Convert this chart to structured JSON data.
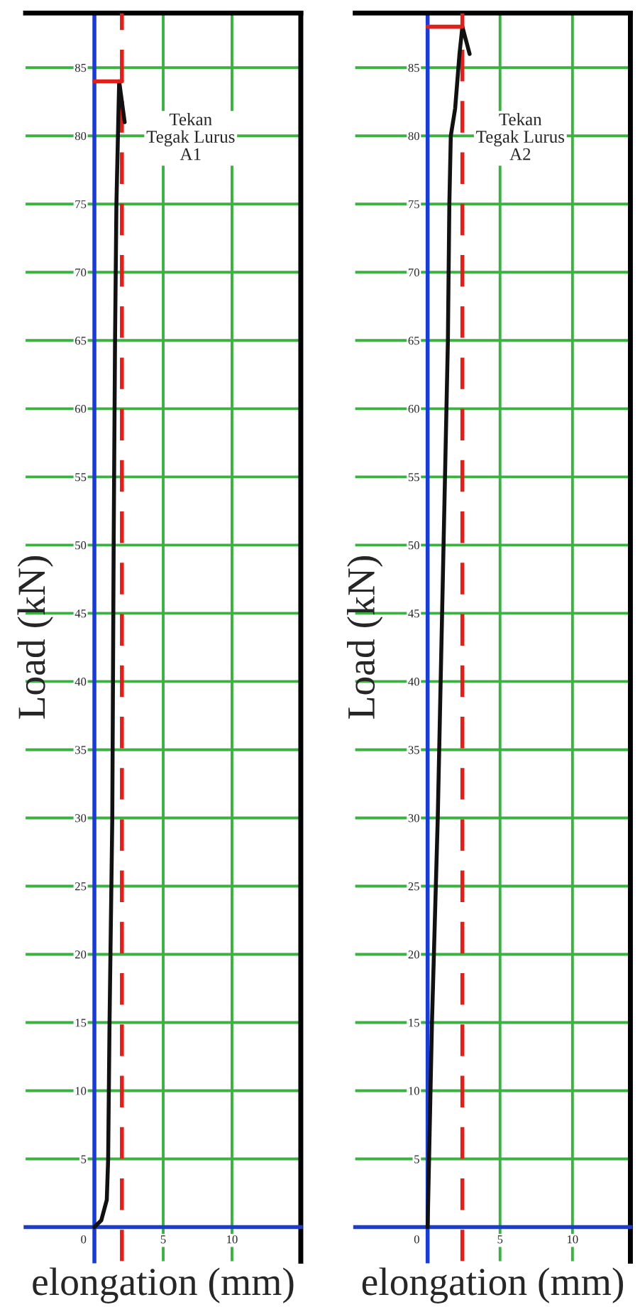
{
  "chart_data": [
    {
      "type": "line",
      "xlabel": "elongation (mm)",
      "ylabel": "Load (kN)",
      "annotations": [
        "Tekan\nTegak Lurus\nA1"
      ],
      "xlim": [
        -5,
        15
      ],
      "ylim": [
        -2.5,
        89
      ],
      "xticks": [
        0,
        5,
        10
      ],
      "yticks": [
        5,
        10,
        15,
        20,
        25,
        30,
        35,
        40,
        45,
        50,
        55,
        60,
        65,
        70,
        75,
        80,
        85
      ],
      "grid": true,
      "series": [
        {
          "color": "#111111",
          "x": [
            0,
            0.5,
            0.9,
            1.0,
            1.1,
            1.3,
            1.4,
            1.5,
            1.6,
            1.8,
            2.2
          ],
          "values": [
            0,
            0.5,
            2,
            5,
            15,
            30,
            50,
            65,
            75,
            84,
            81
          ]
        },
        {
          "color": "#e0201a",
          "x": [
            0,
            2
          ],
          "values": [
            84,
            84
          ]
        }
      ],
      "ref_lines": [
        {
          "axis": "x",
          "value": 2,
          "color": "#e0201a",
          "line_style": "dashed"
        }
      ]
    },
    {
      "type": "line",
      "xlabel": "elongation (mm)",
      "ylabel": "Load (kN)",
      "annotations": [
        "Tekan\nTegak Lurus\nA2"
      ],
      "xlim": [
        -5,
        14
      ],
      "ylim": [
        -2.5,
        89
      ],
      "xticks": [
        0,
        5,
        10
      ],
      "yticks": [
        5,
        10,
        15,
        20,
        25,
        30,
        35,
        40,
        45,
        50,
        55,
        60,
        65,
        70,
        75,
        80,
        85
      ],
      "grid": true,
      "series": [
        {
          "color": "#111111",
          "x": [
            0,
            0.1,
            0.2,
            0.3,
            0.7,
            1.0,
            1.4,
            1.5,
            1.6,
            1.9,
            2.2,
            2.4,
            2.9
          ],
          "values": [
            0,
            5,
            10,
            15,
            30,
            45,
            65,
            75,
            80,
            82,
            86,
            88,
            86
          ]
        },
        {
          "color": "#e0201a",
          "x": [
            0,
            2.4
          ],
          "values": [
            88,
            88
          ]
        }
      ],
      "ref_lines": [
        {
          "axis": "x",
          "value": 2.4,
          "color": "#e0201a",
          "line_style": "dashed"
        }
      ]
    }
  ]
}
